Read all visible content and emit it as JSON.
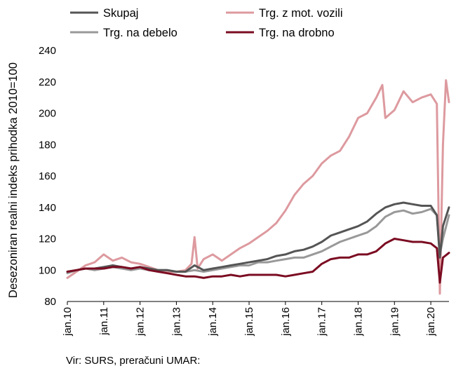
{
  "chart_data": {
    "type": "line",
    "ylabel": "Desezoniran realni indeks prihodka 2010=100",
    "ylim": [
      80,
      240
    ],
    "yticks": [
      80,
      100,
      120,
      140,
      160,
      180,
      200,
      220,
      240
    ],
    "xlim": [
      "2010-01",
      "2020-07"
    ],
    "xticks": [
      "jan.10",
      "jan.11",
      "jan.12",
      "jan.13",
      "jan.14",
      "jan.15",
      "jan.16",
      "jan.17",
      "jan.18",
      "jan.19",
      "jan.20"
    ],
    "grid": false,
    "legend_position": "top",
    "source": "Vir: SURS, preračuni UMAR:",
    "series": [
      {
        "name": "Skupaj",
        "color": "#555555",
        "points": [
          [
            "2010-01",
            99
          ],
          [
            "2010-04",
            100
          ],
          [
            "2010-07",
            101
          ],
          [
            "2010-10",
            101
          ],
          [
            "2011-01",
            102
          ],
          [
            "2011-04",
            103
          ],
          [
            "2011-07",
            102
          ],
          [
            "2011-10",
            101
          ],
          [
            "2012-01",
            102
          ],
          [
            "2012-04",
            101
          ],
          [
            "2012-07",
            100
          ],
          [
            "2012-10",
            100
          ],
          [
            "2013-01",
            99
          ],
          [
            "2013-04",
            99
          ],
          [
            "2013-07",
            103
          ],
          [
            "2013-10",
            100
          ],
          [
            "2014-01",
            101
          ],
          [
            "2014-04",
            102
          ],
          [
            "2014-07",
            103
          ],
          [
            "2014-10",
            104
          ],
          [
            "2015-01",
            105
          ],
          [
            "2015-04",
            106
          ],
          [
            "2015-07",
            107
          ],
          [
            "2015-10",
            109
          ],
          [
            "2016-01",
            110
          ],
          [
            "2016-04",
            112
          ],
          [
            "2016-07",
            113
          ],
          [
            "2016-10",
            115
          ],
          [
            "2017-01",
            118
          ],
          [
            "2017-04",
            122
          ],
          [
            "2017-07",
            124
          ],
          [
            "2017-10",
            126
          ],
          [
            "2018-01",
            128
          ],
          [
            "2018-04",
            131
          ],
          [
            "2018-07",
            136
          ],
          [
            "2018-10",
            140
          ],
          [
            "2019-01",
            142
          ],
          [
            "2019-04",
            143
          ],
          [
            "2019-07",
            142
          ],
          [
            "2019-10",
            141
          ],
          [
            "2020-01",
            141
          ],
          [
            "2020-03",
            135
          ],
          [
            "2020-04",
            108
          ],
          [
            "2020-05",
            128
          ],
          [
            "2020-07",
            140
          ]
        ]
      },
      {
        "name": "Trg. z mot. vozili",
        "color": "#dd9a9f",
        "points": [
          [
            "2010-01",
            95
          ],
          [
            "2010-04",
            99
          ],
          [
            "2010-07",
            103
          ],
          [
            "2010-10",
            105
          ],
          [
            "2011-01",
            110
          ],
          [
            "2011-04",
            106
          ],
          [
            "2011-07",
            108
          ],
          [
            "2011-10",
            105
          ],
          [
            "2012-01",
            104
          ],
          [
            "2012-04",
            102
          ],
          [
            "2012-07",
            100
          ],
          [
            "2012-10",
            99
          ],
          [
            "2013-01",
            99
          ],
          [
            "2013-04",
            100
          ],
          [
            "2013-06",
            104
          ],
          [
            "2013-07",
            121
          ],
          [
            "2013-08",
            101
          ],
          [
            "2013-10",
            107
          ],
          [
            "2014-01",
            110
          ],
          [
            "2014-04",
            106
          ],
          [
            "2014-07",
            110
          ],
          [
            "2014-10",
            114
          ],
          [
            "2015-01",
            117
          ],
          [
            "2015-04",
            121
          ],
          [
            "2015-07",
            125
          ],
          [
            "2015-10",
            130
          ],
          [
            "2016-01",
            138
          ],
          [
            "2016-04",
            148
          ],
          [
            "2016-07",
            155
          ],
          [
            "2016-10",
            160
          ],
          [
            "2017-01",
            168
          ],
          [
            "2017-04",
            173
          ],
          [
            "2017-07",
            176
          ],
          [
            "2017-10",
            185
          ],
          [
            "2018-01",
            197
          ],
          [
            "2018-04",
            200
          ],
          [
            "2018-07",
            210
          ],
          [
            "2018-09",
            218
          ],
          [
            "2018-10",
            197
          ],
          [
            "2019-01",
            202
          ],
          [
            "2019-04",
            214
          ],
          [
            "2019-07",
            207
          ],
          [
            "2019-10",
            210
          ],
          [
            "2020-01",
            212
          ],
          [
            "2020-03",
            206
          ],
          [
            "2020-04",
            85
          ],
          [
            "2020-05",
            180
          ],
          [
            "2020-06",
            221
          ],
          [
            "2020-07",
            207
          ]
        ]
      },
      {
        "name": "Trg. na debelo",
        "color": "#999999",
        "points": [
          [
            "2010-01",
            98
          ],
          [
            "2010-04",
            100
          ],
          [
            "2010-07",
            101
          ],
          [
            "2010-10",
            100
          ],
          [
            "2011-01",
            101
          ],
          [
            "2011-04",
            102
          ],
          [
            "2011-07",
            101
          ],
          [
            "2011-10",
            100
          ],
          [
            "2012-01",
            101
          ],
          [
            "2012-04",
            100
          ],
          [
            "2012-07",
            100
          ],
          [
            "2012-10",
            100
          ],
          [
            "2013-01",
            99
          ],
          [
            "2013-04",
            99
          ],
          [
            "2013-07",
            100
          ],
          [
            "2013-10",
            99
          ],
          [
            "2014-01",
            100
          ],
          [
            "2014-04",
            101
          ],
          [
            "2014-07",
            102
          ],
          [
            "2014-10",
            103
          ],
          [
            "2015-01",
            103
          ],
          [
            "2015-04",
            105
          ],
          [
            "2015-07",
            105
          ],
          [
            "2015-10",
            106
          ],
          [
            "2016-01",
            107
          ],
          [
            "2016-04",
            108
          ],
          [
            "2016-07",
            108
          ],
          [
            "2016-10",
            110
          ],
          [
            "2017-01",
            112
          ],
          [
            "2017-04",
            115
          ],
          [
            "2017-07",
            118
          ],
          [
            "2017-10",
            120
          ],
          [
            "2018-01",
            122
          ],
          [
            "2018-04",
            124
          ],
          [
            "2018-07",
            128
          ],
          [
            "2018-10",
            134
          ],
          [
            "2019-01",
            137
          ],
          [
            "2019-04",
            138
          ],
          [
            "2019-07",
            136
          ],
          [
            "2019-10",
            137
          ],
          [
            "2020-01",
            139
          ],
          [
            "2020-03",
            135
          ],
          [
            "2020-04",
            110
          ],
          [
            "2020-05",
            120
          ],
          [
            "2020-07",
            135
          ]
        ]
      },
      {
        "name": "Trg. na drobno",
        "color": "#7b0c22",
        "points": [
          [
            "2010-01",
            99
          ],
          [
            "2010-04",
            100
          ],
          [
            "2010-07",
            101
          ],
          [
            "2010-10",
            101
          ],
          [
            "2011-01",
            101
          ],
          [
            "2011-04",
            102
          ],
          [
            "2011-07",
            102
          ],
          [
            "2011-10",
            101
          ],
          [
            "2012-01",
            102
          ],
          [
            "2012-04",
            100
          ],
          [
            "2012-07",
            99
          ],
          [
            "2012-10",
            98
          ],
          [
            "2013-01",
            97
          ],
          [
            "2013-04",
            96
          ],
          [
            "2013-07",
            96
          ],
          [
            "2013-10",
            95
          ],
          [
            "2014-01",
            96
          ],
          [
            "2014-04",
            96
          ],
          [
            "2014-07",
            97
          ],
          [
            "2014-10",
            96
          ],
          [
            "2015-01",
            97
          ],
          [
            "2015-04",
            97
          ],
          [
            "2015-07",
            97
          ],
          [
            "2015-10",
            97
          ],
          [
            "2016-01",
            96
          ],
          [
            "2016-04",
            97
          ],
          [
            "2016-07",
            98
          ],
          [
            "2016-10",
            99
          ],
          [
            "2017-01",
            104
          ],
          [
            "2017-04",
            107
          ],
          [
            "2017-07",
            108
          ],
          [
            "2017-10",
            108
          ],
          [
            "2018-01",
            110
          ],
          [
            "2018-04",
            110
          ],
          [
            "2018-07",
            112
          ],
          [
            "2018-10",
            117
          ],
          [
            "2019-01",
            120
          ],
          [
            "2019-04",
            119
          ],
          [
            "2019-07",
            118
          ],
          [
            "2019-10",
            118
          ],
          [
            "2020-01",
            117
          ],
          [
            "2020-03",
            114
          ],
          [
            "2020-04",
            92
          ],
          [
            "2020-05",
            108
          ],
          [
            "2020-07",
            111
          ]
        ]
      }
    ]
  }
}
